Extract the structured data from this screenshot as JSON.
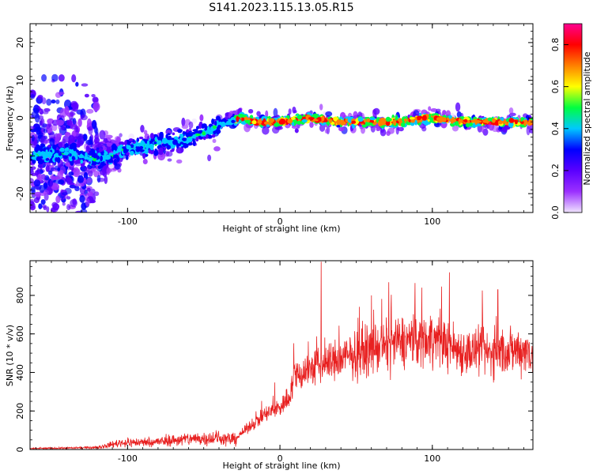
{
  "title": "S141.2023.115.13.05.R15",
  "chart_data": [
    {
      "type": "heatmap",
      "name": "spectrogram",
      "xlabel": "Height of straight line (km)",
      "ylabel": "Frequency (Hz)",
      "xlim": [
        -164,
        166
      ],
      "ylim": [
        -25,
        25
      ],
      "x_ticks": [
        -100,
        0,
        100
      ],
      "y_ticks": [
        -20,
        -10,
        0,
        10,
        20
      ],
      "colorbar": {
        "label": "Normalized spectral amplitude",
        "range": [
          0.0,
          0.9
        ],
        "ticks": [
          0.0,
          0.2,
          0.4,
          0.6,
          0.8
        ],
        "colors": [
          "#f0e4ff",
          "#9b30ff",
          "#5a00ff",
          "#0000ff",
          "#00c8ff",
          "#00ff40",
          "#ffff00",
          "#ff8000",
          "#ff0000",
          "#ff0090"
        ]
      },
      "ridge": {
        "x": [
          -164,
          -140,
          -120,
          -100,
          -80,
          -60,
          -45,
          -35,
          -25,
          -15,
          0,
          20,
          40,
          60,
          80,
          95,
          100,
          120,
          140,
          166
        ],
        "y": [
          -10,
          -9,
          -11,
          -8,
          -7,
          -5,
          -3,
          -1,
          0,
          -1,
          -1,
          0,
          -1,
          -1,
          -1,
          0,
          0,
          -1,
          -1,
          -1
        ]
      }
    },
    {
      "type": "line",
      "name": "snr",
      "xlabel": "Height of straight line (km)",
      "ylabel": "SNR (10 * v/v)",
      "xlim": [
        -164,
        166
      ],
      "ylim": [
        0,
        980
      ],
      "x_ticks": [
        -100,
        0,
        100
      ],
      "y_ticks": [
        0,
        200,
        400,
        600,
        800
      ],
      "color": "#e82020",
      "series_trend": {
        "x": [
          -164,
          -120,
          -105,
          -80,
          -60,
          -40,
          -30,
          -20,
          -10,
          0,
          5,
          10,
          20,
          40,
          60,
          80,
          100,
          120,
          140,
          160,
          166
        ],
        "y": [
          5,
          10,
          35,
          40,
          55,
          60,
          50,
          120,
          180,
          220,
          260,
          380,
          420,
          470,
          520,
          560,
          580,
          510,
          500,
          520,
          500
        ]
      },
      "peaks": [
        {
          "x": 27,
          "y": 975
        },
        {
          "x": 60,
          "y": 800
        },
        {
          "x": 93,
          "y": 840
        },
        {
          "x": 143,
          "y": 830
        }
      ]
    }
  ]
}
